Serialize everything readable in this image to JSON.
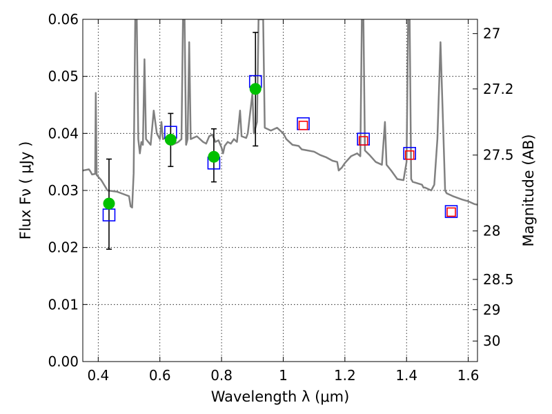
{
  "chart_data": {
    "type": "scatter",
    "title": "",
    "xlabel": "Wavelength  λ (μm)",
    "ylabel": "Flux  Fν  ( μJy )",
    "ylabel_right": "Magnitude (AB)",
    "xlim": [
      0.35,
      1.63
    ],
    "ylim": [
      0.0,
      0.06
    ],
    "grid": true,
    "x_ticks": [
      0.4,
      0.6,
      0.8,
      1.0,
      1.2,
      1.4,
      1.6
    ],
    "x_tick_labels": [
      "0.4",
      "0.6",
      "0.8",
      "1",
      "1.2",
      "1.4",
      "1.6"
    ],
    "y_ticks": [
      0.0,
      0.01,
      0.02,
      0.03,
      0.04,
      0.05,
      0.06
    ],
    "y_tick_labels": [
      "0.00",
      "0.01",
      "0.02",
      "0.03",
      "0.04",
      "0.05",
      "0.06"
    ],
    "right_ticks": [
      {
        "label": "27",
        "flux": 0.0575
      },
      {
        "label": "27.2",
        "flux": 0.0478
      },
      {
        "label": "27.5",
        "flux": 0.0362
      },
      {
        "label": "28",
        "flux": 0.0229
      },
      {
        "label": "28.5",
        "flux": 0.0144
      },
      {
        "label": "29",
        "flux": 0.0091
      },
      {
        "label": "30",
        "flux": 0.0036
      }
    ],
    "series": [
      {
        "type": "line",
        "color": "#808080",
        "points": [
          [
            0.35,
            0.0335
          ],
          [
            0.37,
            0.0337
          ],
          [
            0.375,
            0.0333
          ],
          [
            0.38,
            0.0328
          ],
          [
            0.39,
            0.0329
          ],
          [
            0.392,
            0.0471
          ],
          [
            0.395,
            0.0327
          ],
          [
            0.41,
            0.0318
          ],
          [
            0.43,
            0.03
          ],
          [
            0.46,
            0.0298
          ],
          [
            0.48,
            0.0294
          ],
          [
            0.5,
            0.029
          ],
          [
            0.505,
            0.0272
          ],
          [
            0.51,
            0.027
          ],
          [
            0.515,
            0.033
          ],
          [
            0.52,
            0.06
          ],
          [
            0.525,
            0.06
          ],
          [
            0.53,
            0.039
          ],
          [
            0.535,
            0.0365
          ],
          [
            0.54,
            0.0385
          ],
          [
            0.545,
            0.038
          ],
          [
            0.55,
            0.053
          ],
          [
            0.555,
            0.039
          ],
          [
            0.57,
            0.038
          ],
          [
            0.58,
            0.044
          ],
          [
            0.59,
            0.04
          ],
          [
            0.6,
            0.039
          ],
          [
            0.605,
            0.042
          ],
          [
            0.61,
            0.039
          ],
          [
            0.63,
            0.0395
          ],
          [
            0.64,
            0.038
          ],
          [
            0.66,
            0.0385
          ],
          [
            0.67,
            0.039
          ],
          [
            0.675,
            0.06
          ],
          [
            0.68,
            0.06
          ],
          [
            0.685,
            0.038
          ],
          [
            0.69,
            0.039
          ],
          [
            0.695,
            0.056
          ],
          [
            0.7,
            0.039
          ],
          [
            0.72,
            0.0395
          ],
          [
            0.74,
            0.0385
          ],
          [
            0.75,
            0.0382
          ],
          [
            0.76,
            0.0395
          ],
          [
            0.77,
            0.0398
          ],
          [
            0.78,
            0.0385
          ],
          [
            0.79,
            0.0388
          ],
          [
            0.8,
            0.0375
          ],
          [
            0.805,
            0.0365
          ],
          [
            0.81,
            0.0378
          ],
          [
            0.82,
            0.0385
          ],
          [
            0.83,
            0.0382
          ],
          [
            0.84,
            0.039
          ],
          [
            0.85,
            0.0385
          ],
          [
            0.86,
            0.044
          ],
          [
            0.865,
            0.0395
          ],
          [
            0.88,
            0.0392
          ],
          [
            0.885,
            0.04
          ],
          [
            0.9,
            0.047
          ],
          [
            0.905,
            0.04
          ],
          [
            0.915,
            0.042
          ],
          [
            0.92,
            0.06
          ],
          [
            0.93,
            0.06
          ],
          [
            0.935,
            0.06
          ],
          [
            0.94,
            0.041
          ],
          [
            0.96,
            0.0405
          ],
          [
            0.98,
            0.041
          ],
          [
            0.99,
            0.0405
          ],
          [
            1.0,
            0.04
          ],
          [
            1.01,
            0.039
          ],
          [
            1.03,
            0.038
          ],
          [
            1.05,
            0.0378
          ],
          [
            1.06,
            0.0372
          ],
          [
            1.08,
            0.037
          ],
          [
            1.1,
            0.0368
          ],
          [
            1.12,
            0.0362
          ],
          [
            1.14,
            0.0358
          ],
          [
            1.16,
            0.0352
          ],
          [
            1.175,
            0.035
          ],
          [
            1.18,
            0.0335
          ],
          [
            1.19,
            0.034
          ],
          [
            1.2,
            0.0348
          ],
          [
            1.22,
            0.036
          ],
          [
            1.24,
            0.0365
          ],
          [
            1.25,
            0.036
          ],
          [
            1.255,
            0.06
          ],
          [
            1.26,
            0.06
          ],
          [
            1.265,
            0.037
          ],
          [
            1.28,
            0.0362
          ],
          [
            1.3,
            0.035
          ],
          [
            1.32,
            0.0345
          ],
          [
            1.33,
            0.042
          ],
          [
            1.335,
            0.0345
          ],
          [
            1.35,
            0.0335
          ],
          [
            1.37,
            0.032
          ],
          [
            1.39,
            0.0318
          ],
          [
            1.4,
            0.035
          ],
          [
            1.405,
            0.06
          ],
          [
            1.41,
            0.06
          ],
          [
            1.415,
            0.032
          ],
          [
            1.42,
            0.0315
          ],
          [
            1.45,
            0.031
          ],
          [
            1.455,
            0.0305
          ],
          [
            1.46,
            0.0305
          ],
          [
            1.48,
            0.03
          ],
          [
            1.49,
            0.031
          ],
          [
            1.5,
            0.039
          ],
          [
            1.51,
            0.056
          ],
          [
            1.52,
            0.039
          ],
          [
            1.525,
            0.03
          ],
          [
            1.53,
            0.0295
          ],
          [
            1.55,
            0.029
          ],
          [
            1.58,
            0.0284
          ],
          [
            1.6,
            0.0281
          ],
          [
            1.62,
            0.0276
          ],
          [
            1.63,
            0.0275
          ]
        ]
      },
      {
        "type": "scatter",
        "marker": "circle",
        "color": "#00c000",
        "x": [
          0.435,
          0.635,
          0.775,
          0.91
        ],
        "y": [
          0.0277,
          0.0389,
          0.0359,
          0.0478
        ],
        "yerr_low": [
          0.0197,
          0.0342,
          0.0315,
          0.0378
        ],
        "yerr_high": [
          0.0355,
          0.0435,
          0.0408,
          0.0577
        ]
      },
      {
        "type": "scatter",
        "marker": "square-open",
        "color": "#0000ff",
        "x": [
          0.435,
          0.635,
          0.775,
          0.91,
          1.065,
          1.26,
          1.41,
          1.545
        ],
        "y": [
          0.0257,
          0.0402,
          0.0348,
          0.0491,
          0.0417,
          0.039,
          0.0365,
          0.0263
        ]
      },
      {
        "type": "scatter",
        "marker": "square-open",
        "color": "#ff0000",
        "x": [
          1.065,
          1.26,
          1.41,
          1.545
        ],
        "y": [
          0.0414,
          0.0387,
          0.0362,
          0.0262
        ]
      }
    ]
  }
}
